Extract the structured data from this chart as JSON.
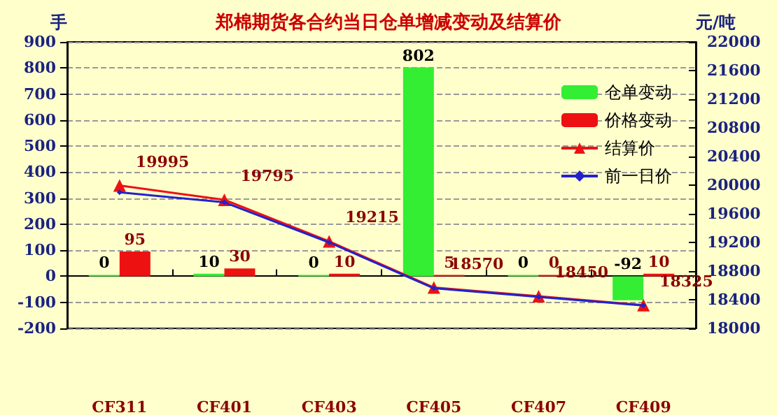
{
  "chart_data": {
    "type": "bar",
    "title": "郑棉期货各合约当日仓单增减变动及结算价",
    "ylabel": "手",
    "y2label": "元/吨",
    "categories": [
      "CF311",
      "CF401",
      "CF403",
      "CF405",
      "CF407",
      "CF409"
    ],
    "series": [
      {
        "name": "仓单变动",
        "color": "#33ee33",
        "values": [
          0,
          10,
          0,
          802,
          0,
          -92
        ],
        "value_labels": [
          "0",
          "10",
          "0",
          "802",
          "0",
          "-92"
        ]
      },
      {
        "name": "价格变动",
        "color": "#ee1111",
        "values": [
          95,
          30,
          10,
          5,
          0,
          10
        ],
        "value_labels": [
          "95",
          "30",
          "10",
          "5",
          "0",
          "10"
        ]
      },
      {
        "name": "结算价",
        "type": "line",
        "axis": "y2",
        "color": "#ee1111",
        "marker": "triangle",
        "values": [
          19995,
          19795,
          19215,
          18570,
          18450,
          18325
        ],
        "value_labels": [
          "19995",
          "19795",
          "19215",
          "18570",
          "18450",
          "18325"
        ]
      },
      {
        "name": "前一日价",
        "type": "line",
        "axis": "y2",
        "color": "#2222cc",
        "marker": "diamond",
        "values": [
          19900,
          19760,
          19200,
          18560,
          18440,
          18320
        ]
      }
    ],
    "ylim": [
      -200,
      900
    ],
    "yticks": [
      -200,
      -100,
      0,
      100,
      200,
      300,
      400,
      500,
      600,
      700,
      800,
      900
    ],
    "y2lim": [
      18000,
      22000
    ],
    "y2ticks": [
      18000,
      18400,
      18800,
      19200,
      19600,
      20000,
      20400,
      20800,
      21200,
      21600,
      22000
    ],
    "grid": "y",
    "legend": "top right"
  }
}
